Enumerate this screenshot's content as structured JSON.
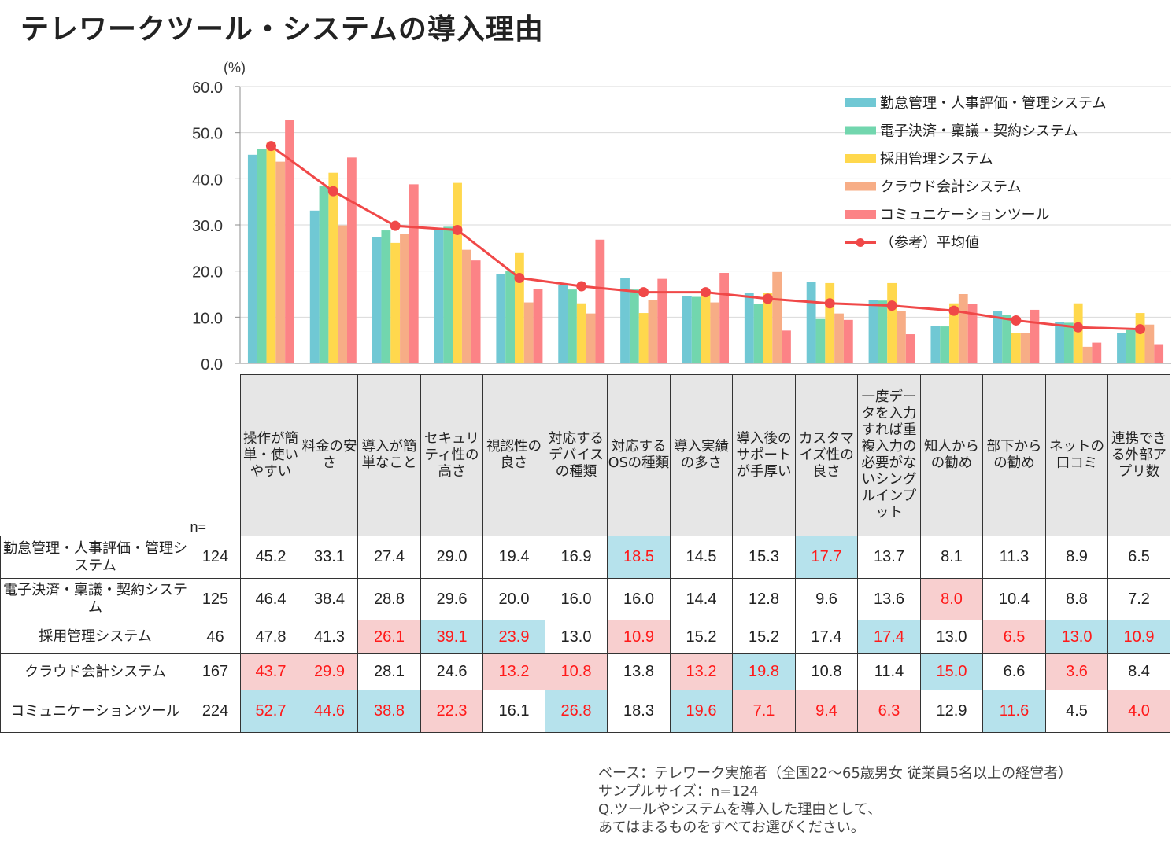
{
  "title": "テレワークツール・システムの導入理由",
  "colors": {
    "series": [
      "#70c8d4",
      "#72d6ae",
      "#ffd84d",
      "#f7ad86",
      "#fc8386"
    ],
    "average": "#f04848",
    "header_bg": "#e6e6e6",
    "highlight_high": "#b6e2ec",
    "highlight_low": "#f8cfcf",
    "highlight_text": "#ff1a1a"
  },
  "chart_data": {
    "type": "bar",
    "unit_label": "(%)",
    "ylim": [
      0,
      60
    ],
    "yticks": [
      "0.0",
      "10.0",
      "20.0",
      "30.0",
      "40.0",
      "50.0",
      "60.0"
    ],
    "grid": true,
    "legend_position": "top-right",
    "categories": [
      "操作が簡単・使いやすい",
      "料金の安さ",
      "導入が簡単なこと",
      "セキュリティ性の高さ",
      "視認性の良さ",
      "対応するデバイスの種類",
      "対応するOSの種類",
      "導入実績の多さ",
      "導入後のサポートが手厚い",
      "カスタマイズ性の良さ",
      "一度データを入力すれば重複入力の必要がないシングルインプット",
      "知人からの勧め",
      "部下からの勧め",
      "ネットの口コミ",
      "連携できる外部アプリ数"
    ],
    "series": [
      {
        "name": "勤怠管理・人事評価・管理システム",
        "values": [
          45.2,
          33.1,
          27.4,
          29.0,
          19.4,
          16.9,
          18.5,
          14.5,
          15.3,
          17.7,
          13.7,
          8.1,
          11.3,
          8.9,
          6.5
        ]
      },
      {
        "name": "電子決済・稟議・契約システム",
        "values": [
          46.4,
          38.4,
          28.8,
          29.6,
          20.0,
          16.0,
          16.0,
          14.4,
          12.8,
          9.6,
          13.6,
          8.0,
          10.4,
          8.8,
          7.2
        ]
      },
      {
        "name": "採用管理システム",
        "values": [
          47.8,
          41.3,
          26.1,
          39.1,
          23.9,
          13.0,
          10.9,
          15.2,
          15.2,
          17.4,
          17.4,
          13.0,
          6.5,
          13.0,
          10.9
        ]
      },
      {
        "name": "クラウド会計システム",
        "values": [
          43.7,
          29.9,
          28.1,
          24.6,
          13.2,
          10.8,
          13.8,
          13.2,
          19.8,
          10.8,
          11.4,
          15.0,
          6.6,
          3.6,
          8.4
        ]
      },
      {
        "name": "コミュニケーションツール",
        "values": [
          52.7,
          44.6,
          38.8,
          22.3,
          16.1,
          26.8,
          18.3,
          19.6,
          7.1,
          9.4,
          6.3,
          12.9,
          11.6,
          4.5,
          4.0
        ]
      }
    ],
    "average": {
      "name": "（参考）平均値",
      "values": [
        47.1,
        37.3,
        29.8,
        28.9,
        18.5,
        16.7,
        15.4,
        15.4,
        14.0,
        13.0,
        12.5,
        11.4,
        9.3,
        7.8,
        7.4
      ]
    }
  },
  "table": {
    "n_header": "n=",
    "headers": [
      "操作が簡単・使いやすい",
      "料金の安さ",
      "導入が簡単なこと",
      "セキュリティ性の高さ",
      "視認性の良さ",
      "対応するデバイスの種類",
      "対応するOSの種類",
      "導入実績の多さ",
      "導入後のサポートが手厚い",
      "カスタマイズ性の良さ",
      "一度データを入力すれば重複入力の必要がないシングルインプット",
      "知人からの勧め",
      "部下からの勧め",
      "ネットの口コミ",
      "連携できる外部アプリ数"
    ],
    "rows": [
      {
        "label": "勤怠管理・人事評価・管理システム",
        "n": "124",
        "values": [
          "45.2",
          "33.1",
          "27.4",
          "29.0",
          "19.4",
          "16.9",
          "18.5",
          "14.5",
          "15.3",
          "17.7",
          "13.7",
          "8.1",
          "11.3",
          "8.9",
          "6.5"
        ],
        "marks": [
          "",
          "",
          "",
          "",
          "",
          "",
          "hi",
          "",
          "",
          "hi",
          "",
          "",
          "",
          "",
          ""
        ]
      },
      {
        "label": "電子決済・稟議・契約システム",
        "n": "125",
        "values": [
          "46.4",
          "38.4",
          "28.8",
          "29.6",
          "20.0",
          "16.0",
          "16.0",
          "14.4",
          "12.8",
          "9.6",
          "13.6",
          "8.0",
          "10.4",
          "8.8",
          "7.2"
        ],
        "marks": [
          "",
          "",
          "",
          "",
          "",
          "",
          "",
          "",
          "",
          "",
          "",
          "lo",
          "",
          "",
          ""
        ]
      },
      {
        "label": "採用管理システム",
        "n": "46",
        "values": [
          "47.8",
          "41.3",
          "26.1",
          "39.1",
          "23.9",
          "13.0",
          "10.9",
          "15.2",
          "15.2",
          "17.4",
          "17.4",
          "13.0",
          "6.5",
          "13.0",
          "10.9"
        ],
        "marks": [
          "",
          "",
          "lo",
          "hi",
          "hi",
          "",
          "lo",
          "",
          "",
          "",
          "hi",
          "",
          "lo",
          "hi",
          "hi"
        ]
      },
      {
        "label": "クラウド会計システム",
        "n": "167",
        "values": [
          "43.7",
          "29.9",
          "28.1",
          "24.6",
          "13.2",
          "10.8",
          "13.8",
          "13.2",
          "19.8",
          "10.8",
          "11.4",
          "15.0",
          "6.6",
          "3.6",
          "8.4"
        ],
        "marks": [
          "lo",
          "lo",
          "",
          "",
          "lo",
          "lo",
          "",
          "lo",
          "hi",
          "",
          "",
          "hi",
          "",
          "lo",
          ""
        ]
      },
      {
        "label": "コミュニケーションツール",
        "n": "224",
        "values": [
          "52.7",
          "44.6",
          "38.8",
          "22.3",
          "16.1",
          "26.8",
          "18.3",
          "19.6",
          "7.1",
          "9.4",
          "6.3",
          "12.9",
          "11.6",
          "4.5",
          "4.0"
        ],
        "marks": [
          "hi",
          "hi",
          "hi",
          "lo",
          "",
          "hi",
          "",
          "hi",
          "lo",
          "lo",
          "lo",
          "",
          "hi",
          "",
          "lo"
        ]
      }
    ]
  },
  "footnote": [
    "ベース：テレワーク実施者（全国22～65歳男女 従業員5名以上の経営者）",
    "サンプルサイズ：n=124",
    "Q.ツールやシステムを導入した理由として、",
    "あてはまるものをすべてお選びください。"
  ]
}
